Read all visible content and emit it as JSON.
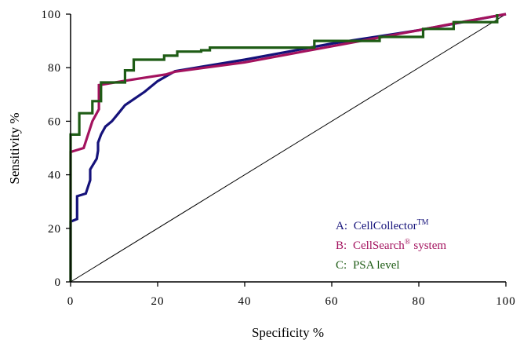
{
  "chart_data": {
    "type": "line",
    "xlabel": "Specificity %",
    "ylabel": "Sensitivity %",
    "xlim": [
      0,
      100
    ],
    "ylim": [
      0,
      100
    ],
    "x_ticks": [
      "0",
      "20",
      "40",
      "60",
      "80",
      "100"
    ],
    "y_ticks": [
      "0",
      "20",
      "40",
      "60",
      "80",
      "100"
    ],
    "grid": false,
    "legend_position": "bottom-right",
    "reference_line": {
      "x": [
        0,
        100
      ],
      "y": [
        0,
        100
      ],
      "color": "#000000"
    },
    "series": [
      {
        "name": "CellCollector",
        "legend_prefix": "A:",
        "legend_sup": "TM",
        "color": "#15127a",
        "step": false,
        "x": [
          0,
          0,
          1.5,
          1.5,
          3.5,
          4.5,
          4.5,
          6,
          6.3,
          6.3,
          7,
          8,
          9.5,
          11,
          12.5,
          17,
          20,
          24,
          40,
          60,
          80,
          100
        ],
        "y": [
          0,
          22.5,
          23.5,
          32,
          33,
          38,
          42,
          46,
          49,
          52,
          55,
          58,
          60,
          63,
          66,
          71,
          75,
          78.7,
          83,
          89,
          94,
          100
        ]
      },
      {
        "name": "CellSearch",
        "legend_prefix": "B:",
        "legend_sup": "®",
        "legend_suffix": "system",
        "color": "#a3125e",
        "step": false,
        "x": [
          0,
          0,
          1,
          3,
          5,
          6.5,
          6.5,
          12,
          16,
          22,
          24,
          40,
          60,
          80,
          88,
          100
        ],
        "y": [
          0,
          48.5,
          49,
          50,
          60,
          64.5,
          73.5,
          75,
          76,
          77.5,
          78.5,
          82,
          88,
          94,
          96.5,
          100
        ]
      },
      {
        "name": "PSA level",
        "legend_prefix": "C:",
        "color": "#1e5c15",
        "step": true,
        "x": [
          0,
          0,
          2,
          2,
          5,
          5,
          7,
          7,
          12.5,
          12.5,
          14.5,
          14.5,
          21.5,
          21.5,
          24.5,
          24.5,
          30,
          30,
          32,
          32,
          56,
          56,
          71,
          71,
          81,
          81,
          88,
          88,
          98,
          98
        ],
        "y": [
          0,
          55,
          55,
          63,
          63,
          67.5,
          67.5,
          74.5,
          74.5,
          79,
          79,
          83,
          83,
          84.5,
          84.5,
          86,
          86,
          86.5,
          86.5,
          87.5,
          87.5,
          90,
          90,
          91.5,
          91.5,
          94.5,
          94.5,
          97,
          97,
          100
        ]
      }
    ]
  }
}
